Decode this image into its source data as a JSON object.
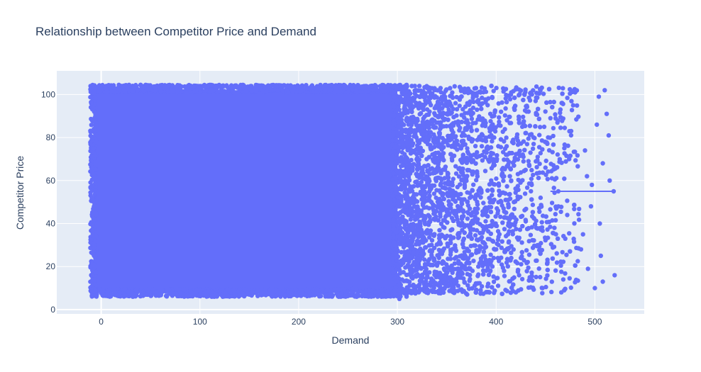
{
  "chart_data": {
    "type": "scatter",
    "title": "Relationship between Competitor Price and Demand",
    "xlabel": "Demand",
    "ylabel": "Competitor Price",
    "xlim": [
      -45,
      550
    ],
    "ylim": [
      -2,
      111
    ],
    "x_ticks": [
      0,
      100,
      200,
      300,
      400,
      500
    ],
    "y_ticks": [
      0,
      20,
      40,
      60,
      80,
      100
    ],
    "grid": true,
    "legend": "none",
    "colors": {
      "marker": "#636efa",
      "plot_bg": "#e5ecf6",
      "grid": "#ffffff",
      "text": "#2a3f5f"
    },
    "series": [
      {
        "points": [
          [
            -10,
            96
          ],
          [
            -8,
            75
          ],
          [
            -9,
            52
          ],
          [
            -7,
            30
          ],
          [
            -9,
            16
          ],
          [
            -6,
            9
          ],
          [
            -8,
            63
          ],
          [
            -7,
            42
          ],
          [
            302,
            5
          ],
          [
            510,
            102
          ],
          [
            512,
            91
          ],
          [
            514,
            81
          ],
          [
            520,
            16
          ],
          [
            504,
            99
          ],
          [
            502,
            86
          ],
          [
            505,
            40
          ],
          [
            506,
            25
          ],
          [
            508,
            13
          ],
          [
            500,
            10
          ],
          [
            497,
            58
          ],
          [
            496,
            48
          ],
          [
            508,
            68
          ],
          [
            515,
            60
          ],
          [
            519,
            55
          ],
          [
            490,
            74
          ],
          [
            492,
            62
          ],
          [
            488,
            35
          ],
          [
            486,
            28
          ],
          [
            493,
            19
          ],
          [
            480,
            101
          ],
          [
            478,
            95
          ],
          [
            476,
            83
          ],
          [
            474,
            70
          ],
          [
            472,
            44
          ],
          [
            470,
            33
          ],
          [
            468,
            14
          ],
          [
            466,
            8
          ],
          [
            463,
            55
          ],
          [
            461,
            47
          ],
          [
            459,
            38
          ],
          [
            455,
            89
          ],
          [
            452,
            22
          ],
          [
            450,
            66
          ],
          [
            447,
            10
          ],
          [
            445,
            52
          ],
          [
            442,
            30
          ],
          [
            440,
            97
          ],
          [
            438,
            77
          ],
          [
            436,
            58
          ],
          [
            434,
            15
          ],
          [
            430,
            41
          ],
          [
            428,
            86
          ],
          [
            425,
            24
          ],
          [
            422,
            63
          ],
          [
            420,
            8
          ],
          [
            418,
            50
          ],
          [
            415,
            100
          ],
          [
            412,
            35
          ],
          [
            410,
            72
          ],
          [
            408,
            18
          ],
          [
            405,
            92
          ],
          [
            402,
            46
          ],
          [
            400,
            28
          ],
          [
            398,
            80
          ],
          [
            395,
            60
          ],
          [
            392,
            12
          ],
          [
            390,
            38
          ],
          [
            387,
            88
          ],
          [
            385,
            55
          ],
          [
            382,
            20
          ]
        ]
      }
    ],
    "density": {
      "x_start": -10,
      "x_end": 485,
      "y_min": 6,
      "y_max": 104,
      "description_free": true
    },
    "trend_line": {
      "x": [
        455,
        518
      ],
      "y": [
        55,
        55
      ]
    }
  }
}
